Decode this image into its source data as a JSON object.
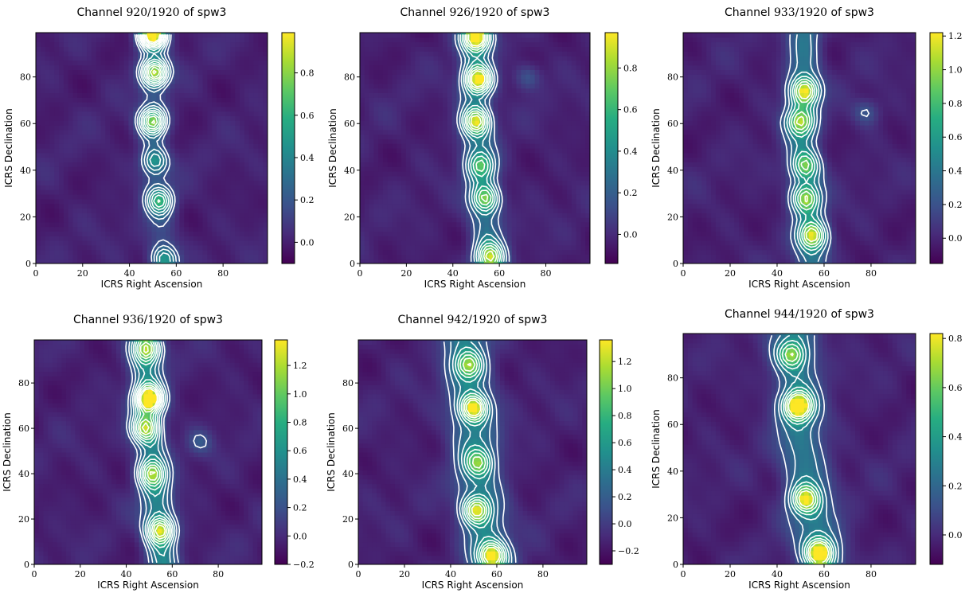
{
  "chart_data": [
    {
      "type": "heatmap",
      "title_prefix": "Channel",
      "channel": "920/1920",
      "title_suffix": "of spw3",
      "xlabel": "ICRS Right Ascension",
      "ylabel": "ICRS Declination",
      "xlim": [
        0,
        99
      ],
      "ylim": [
        0,
        99
      ],
      "xticks": [
        "0",
        "20",
        "40",
        "60",
        "80"
      ],
      "yticks": [
        "0",
        "20",
        "40",
        "60",
        "80"
      ],
      "colorbar": {
        "range": [
          -0.1,
          0.99
        ],
        "ticks": [
          "0.0",
          "0.2",
          "0.4",
          "0.6",
          "0.8"
        ],
        "colormap": "viridis"
      },
      "filament": {
        "path": [
          [
            50,
            99
          ],
          [
            50,
            80
          ],
          [
            50,
            60
          ],
          [
            50,
            45
          ],
          [
            52,
            30
          ],
          [
            54,
            10
          ],
          [
            55,
            0
          ]
        ],
        "width": 4.5,
        "floor": 0.15
      },
      "peaks": [
        {
          "x": 50,
          "y": 98,
          "value": 0.95
        },
        {
          "x": 51,
          "y": 82,
          "value": 0.75
        },
        {
          "x": 50,
          "y": 61,
          "value": 0.65
        },
        {
          "x": 51,
          "y": 44,
          "value": 0.35
        },
        {
          "x": 53,
          "y": 27,
          "value": 0.45
        },
        {
          "x": 55,
          "y": 2,
          "value": 0.35
        }
      ],
      "contour_levels": 10,
      "contour_color": "#ffffff"
    },
    {
      "type": "heatmap",
      "title_prefix": "Channel",
      "channel": "926/1920",
      "title_suffix": "of spw3",
      "xlabel": "ICRS Right Ascension",
      "ylabel": "ICRS Declination",
      "xlim": [
        0,
        99
      ],
      "ylim": [
        0,
        99
      ],
      "xticks": [
        "0",
        "20",
        "40",
        "60",
        "80"
      ],
      "yticks": [
        "0",
        "20",
        "40",
        "60",
        "80"
      ],
      "colorbar": {
        "range": [
          -0.14,
          0.97
        ],
        "ticks": [
          "0.0",
          "0.2",
          "0.4",
          "0.6",
          "0.8"
        ],
        "colormap": "viridis"
      },
      "filament": {
        "path": [
          [
            50,
            99
          ],
          [
            50,
            80
          ],
          [
            50,
            60
          ],
          [
            52,
            40
          ],
          [
            54,
            20
          ],
          [
            56,
            0
          ]
        ],
        "width": 5,
        "floor": 0.3
      },
      "peaks": [
        {
          "x": 50,
          "y": 97,
          "value": 0.85
        },
        {
          "x": 51,
          "y": 79,
          "value": 0.8
        },
        {
          "x": 50,
          "y": 61,
          "value": 0.7
        },
        {
          "x": 52,
          "y": 42,
          "value": 0.4
        },
        {
          "x": 54,
          "y": 28,
          "value": 0.55
        },
        {
          "x": 56,
          "y": 3,
          "value": 0.6
        },
        {
          "x": 72,
          "y": 80,
          "value": 0.2
        }
      ],
      "contour_levels": 8,
      "contour_color": "#ffffff"
    },
    {
      "type": "heatmap",
      "title_prefix": "Channel",
      "channel": "933/1920",
      "title_suffix": "of spw3",
      "xlabel": "ICRS Right Ascension",
      "ylabel": "ICRS Declination",
      "xlim": [
        0,
        99
      ],
      "ylim": [
        0,
        99
      ],
      "xticks": [
        "0",
        "20",
        "40",
        "60",
        "80"
      ],
      "yticks": [
        "0",
        "20",
        "40",
        "60",
        "80"
      ],
      "colorbar": {
        "range": [
          -0.15,
          1.22
        ],
        "ticks": [
          "0.0",
          "0.2",
          "0.4",
          "0.6",
          "0.8",
          "1.0",
          "1.2"
        ],
        "colormap": "viridis"
      },
      "filament": {
        "path": [
          [
            52,
            99
          ],
          [
            51,
            80
          ],
          [
            50,
            60
          ],
          [
            52,
            40
          ],
          [
            54,
            20
          ],
          [
            55,
            0
          ]
        ],
        "width": 5,
        "floor": 0.4
      },
      "peaks": [
        {
          "x": 52,
          "y": 74,
          "value": 0.9
        },
        {
          "x": 50,
          "y": 61,
          "value": 0.7
        },
        {
          "x": 52,
          "y": 42,
          "value": 0.6
        },
        {
          "x": 52,
          "y": 28,
          "value": 0.7
        },
        {
          "x": 55,
          "y": 12,
          "value": 0.8
        },
        {
          "x": 78,
          "y": 65,
          "value": 0.25
        }
      ],
      "contour_levels": 7,
      "contour_color": "#ffffff"
    },
    {
      "type": "heatmap",
      "title_prefix": "Channel",
      "channel": "936/1920",
      "title_suffix": "of spw3",
      "xlabel": "ICRS Right Ascension",
      "ylabel": "ICRS Declination",
      "xlim": [
        0,
        99
      ],
      "ylim": [
        0,
        99
      ],
      "xticks": [
        "0",
        "20",
        "40",
        "60",
        "80"
      ],
      "yticks": [
        "0",
        "20",
        "40",
        "60",
        "80"
      ],
      "colorbar": {
        "range": [
          -0.2,
          1.38
        ],
        "ticks": [
          "−0.2",
          "0.0",
          "0.2",
          "0.4",
          "0.6",
          "0.8",
          "1.0",
          "1.2"
        ],
        "colormap": "viridis"
      },
      "filament": {
        "path": [
          [
            48,
            99
          ],
          [
            49,
            80
          ],
          [
            50,
            60
          ],
          [
            52,
            40
          ],
          [
            54,
            20
          ],
          [
            56,
            0
          ]
        ],
        "width": 5,
        "floor": 0.55
      },
      "peaks": [
        {
          "x": 50,
          "y": 73,
          "value": 1.2
        },
        {
          "x": 48,
          "y": 60,
          "value": 0.8
        },
        {
          "x": 51,
          "y": 40,
          "value": 0.7
        },
        {
          "x": 55,
          "y": 15,
          "value": 0.9
        },
        {
          "x": 49,
          "y": 95,
          "value": 0.8
        },
        {
          "x": 72,
          "y": 54,
          "value": 0.25
        }
      ],
      "contour_levels": 9,
      "contour_color": "#ffffff"
    },
    {
      "type": "heatmap",
      "title_prefix": "Channel",
      "channel": "942/1920",
      "title_suffix": "of spw3",
      "xlabel": "ICRS Right Ascension",
      "ylabel": "ICRS Declination",
      "xlim": [
        0,
        99
      ],
      "ylim": [
        0,
        99
      ],
      "xticks": [
        "0",
        "20",
        "40",
        "60",
        "80"
      ],
      "yticks": [
        "0",
        "20",
        "40",
        "60",
        "80"
      ],
      "colorbar": {
        "range": [
          -0.3,
          1.36
        ],
        "ticks": [
          "−0.2",
          "0.0",
          "0.2",
          "0.4",
          "0.6",
          "0.8",
          "1.0",
          "1.2"
        ],
        "colormap": "viridis"
      },
      "filament": {
        "path": [
          [
            46,
            99
          ],
          [
            48,
            80
          ],
          [
            50,
            60
          ],
          [
            52,
            40
          ],
          [
            54,
            20
          ],
          [
            58,
            0
          ]
        ],
        "width": 7,
        "floor": 0.55
      },
      "peaks": [
        {
          "x": 50,
          "y": 69,
          "value": 1.15
        },
        {
          "x": 51,
          "y": 24,
          "value": 1.0
        },
        {
          "x": 58,
          "y": 4,
          "value": 1.1
        },
        {
          "x": 52,
          "y": 45,
          "value": 0.65
        },
        {
          "x": 48,
          "y": 88,
          "value": 0.7
        }
      ],
      "contour_levels": 8,
      "contour_color": "#ffffff"
    },
    {
      "type": "heatmap",
      "title_prefix": "Channel",
      "channel": "944/1920",
      "title_suffix": "of spw3",
      "xlabel": "ICRS Right Ascension",
      "ylabel": "ICRS Declination",
      "xlim": [
        0,
        99
      ],
      "ylim": [
        0,
        99
      ],
      "xticks": [
        "0",
        "20",
        "40",
        "60",
        "80"
      ],
      "yticks": [
        "0",
        "20",
        "40",
        "60",
        "80"
      ],
      "colorbar": {
        "range": [
          -0.12,
          0.82
        ],
        "ticks": [
          "0.0",
          "0.2",
          "0.4",
          "0.6",
          "0.8"
        ],
        "colormap": "viridis"
      },
      "filament": {
        "path": [
          [
            48,
            99
          ],
          [
            48,
            80
          ],
          [
            50,
            60
          ],
          [
            52,
            40
          ],
          [
            55,
            20
          ],
          [
            60,
            0
          ]
        ],
        "width": 7,
        "floor": 0.3
      },
      "peaks": [
        {
          "x": 49,
          "y": 68,
          "value": 0.8
        },
        {
          "x": 52,
          "y": 28,
          "value": 0.6
        },
        {
          "x": 58,
          "y": 5,
          "value": 0.75
        },
        {
          "x": 46,
          "y": 90,
          "value": 0.45
        }
      ],
      "contour_levels": 7,
      "contour_color": "#ffffff"
    }
  ]
}
